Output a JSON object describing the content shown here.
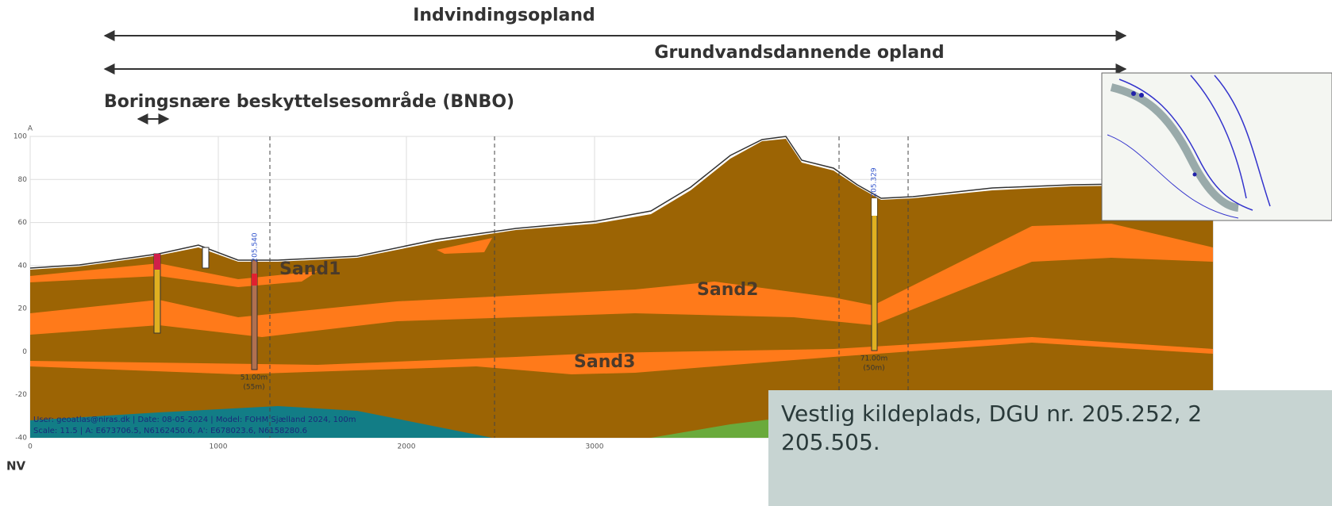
{
  "header": {
    "arrows": [
      "Indvindingsopland",
      "Grundvandsdannende opland",
      "Boringsnære beskyttelsesområde (BNBO)"
    ]
  },
  "section": {
    "axis_label": "A",
    "yticks": [
      100,
      80,
      60,
      40,
      20,
      0,
      -20,
      -40
    ],
    "xticks": [
      0,
      1000,
      2000,
      3000
    ],
    "layers": [
      "Sand1",
      "Sand2",
      "Sand3"
    ],
    "boreholes": [
      {
        "id": "205.540",
        "depth": "51.00m",
        "length": "(55m)"
      },
      {
        "id": "205.329",
        "depth": "71.00m",
        "length": "(50m)"
      }
    ],
    "footer": [
      "User: geoatlas@niras.dk | Date: 08-05-2024 | Model: FOHM Sjælland 2024, 100m",
      "Scale: 11.5 | A: E673706.5, N6162450.6, A': E678023.6, N6158280.6"
    ],
    "direction": "NV"
  },
  "caption": [
    "Vestlig kildeplads, DGU nr. 205.252, 2",
    "205.505."
  ]
}
